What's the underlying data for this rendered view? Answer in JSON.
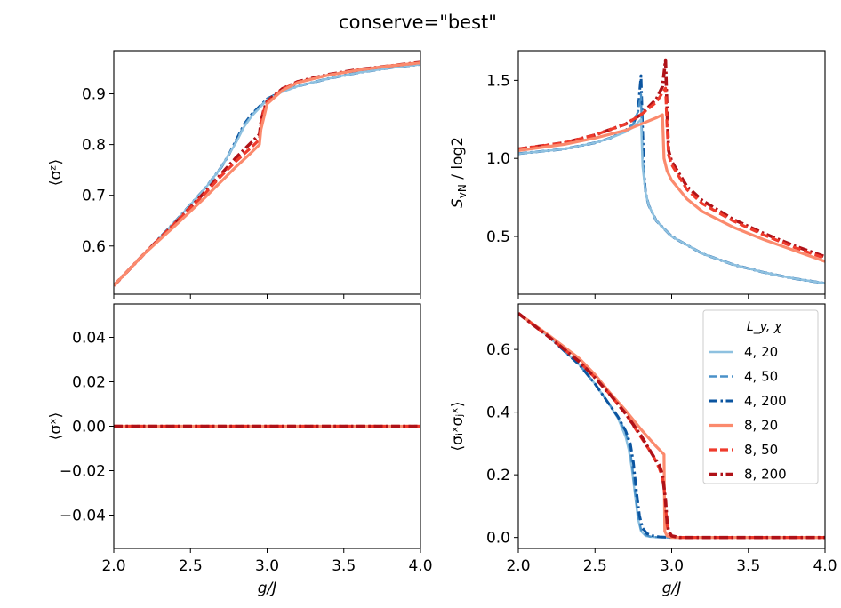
{
  "chart_data": {
    "title": "conserve=\"best\"",
    "colors": {
      "4, 20": "#8ec1e0",
      "4, 50": "#4a91c8",
      "4, 200": "#0b55a0",
      "8, 20": "#fb8a6d",
      "8, 50": "#ef3b2c",
      "8, 200": "#b01218"
    },
    "legend": {
      "title": "L_y, χ",
      "position": "upper right of bottom-right panel",
      "entries": [
        {
          "label": "4,  20",
          "key": "4, 20",
          "style": "solid"
        },
        {
          "label": "4,  50",
          "key": "4, 50",
          "style": "dashed"
        },
        {
          "label": "4,  200",
          "key": "4, 200",
          "style": "dashdot"
        },
        {
          "label": "8,  20",
          "key": "8, 20",
          "style": "solid"
        },
        {
          "label": "8,  50",
          "key": "8, 50",
          "style": "dashed"
        },
        {
          "label": "8,  200",
          "key": "8, 200",
          "style": "dashdot"
        }
      ]
    },
    "panels": [
      {
        "id": "sz",
        "type": "line",
        "ylabel": "⟨σᶻ⟩",
        "xlim": [
          2.0,
          4.0
        ],
        "ylim": [
          0.505,
          0.985
        ],
        "xticks": [],
        "yticks": [
          0.6,
          0.7,
          0.8,
          0.9
        ],
        "ytick_labels": [
          "0.6",
          "0.7",
          "0.8",
          "0.9"
        ],
        "series": [
          {
            "key": "4, 200",
            "style": "dashdot",
            "x": [
              2.0,
              2.2,
              2.4,
              2.6,
              2.7,
              2.75,
              2.8,
              2.85,
              2.9,
              3.0,
              3.1,
              3.2,
              3.4,
              3.6,
              3.8,
              4.0
            ],
            "y": [
              0.522,
              0.585,
              0.648,
              0.715,
              0.755,
              0.78,
              0.81,
              0.84,
              0.86,
              0.89,
              0.905,
              0.915,
              0.93,
              0.942,
              0.951,
              0.958
            ]
          },
          {
            "key": "4, 50",
            "style": "dashed",
            "x": [
              2.0,
              2.2,
              2.4,
              2.6,
              2.7,
              2.75,
              2.8,
              2.85,
              2.9,
              3.0,
              3.1,
              3.2,
              3.4,
              3.6,
              3.8,
              4.0
            ],
            "y": [
              0.522,
              0.585,
              0.648,
              0.715,
              0.755,
              0.78,
              0.808,
              0.838,
              0.858,
              0.889,
              0.905,
              0.915,
              0.93,
              0.942,
              0.951,
              0.958
            ]
          },
          {
            "key": "4, 20",
            "style": "solid",
            "x": [
              2.0,
              2.2,
              2.4,
              2.6,
              2.7,
              2.75,
              2.8,
              2.85,
              2.9,
              3.0,
              3.1,
              3.2,
              3.4,
              3.6,
              3.8,
              4.0
            ],
            "y": [
              0.522,
              0.585,
              0.648,
              0.715,
              0.755,
              0.78,
              0.805,
              0.835,
              0.856,
              0.888,
              0.904,
              0.915,
              0.93,
              0.942,
              0.951,
              0.958
            ]
          },
          {
            "key": "8, 200",
            "style": "dashdot",
            "x": [
              2.0,
              2.2,
              2.4,
              2.6,
              2.7,
              2.8,
              2.9,
              2.95,
              2.96,
              2.98,
              3.0,
              3.1,
              3.2,
              3.4,
              3.6,
              3.8,
              4.0
            ],
            "y": [
              0.522,
              0.585,
              0.645,
              0.708,
              0.742,
              0.775,
              0.805,
              0.82,
              0.845,
              0.87,
              0.885,
              0.91,
              0.924,
              0.938,
              0.948,
              0.955,
              0.962
            ]
          },
          {
            "key": "8, 50",
            "style": "dashed",
            "x": [
              2.0,
              2.2,
              2.4,
              2.6,
              2.7,
              2.8,
              2.9,
              2.95,
              2.96,
              2.98,
              3.0,
              3.1,
              3.2,
              3.4,
              3.6,
              3.8,
              4.0
            ],
            "y": [
              0.522,
              0.585,
              0.645,
              0.705,
              0.738,
              0.768,
              0.795,
              0.81,
              0.84,
              0.868,
              0.883,
              0.909,
              0.923,
              0.937,
              0.947,
              0.955,
              0.961
            ]
          },
          {
            "key": "8, 20",
            "style": "solid",
            "x": [
              2.0,
              2.2,
              2.4,
              2.6,
              2.7,
              2.8,
              2.9,
              2.95,
              2.96,
              3.0,
              3.1,
              3.2,
              3.4,
              3.6,
              3.8,
              4.0
            ],
            "y": [
              0.522,
              0.585,
              0.64,
              0.697,
              0.727,
              0.757,
              0.785,
              0.8,
              0.83,
              0.88,
              0.907,
              0.922,
              0.937,
              0.947,
              0.955,
              0.961
            ]
          }
        ]
      },
      {
        "id": "svn",
        "type": "line",
        "ylabel_main": "S",
        "ylabel_sub": "vN",
        "ylabel_rest": " / log2",
        "xlim": [
          2.0,
          4.0
        ],
        "ylim": [
          0.13,
          1.69
        ],
        "xticks": [],
        "yticks": [
          0.5,
          1.0,
          1.5
        ],
        "ytick_labels": [
          "0.5",
          "1.0",
          "1.5"
        ],
        "series": [
          {
            "key": "4, 200",
            "style": "dashdot",
            "x": [
              2.0,
              2.3,
              2.5,
              2.6,
              2.7,
              2.75,
              2.78,
              2.8,
              2.81,
              2.82,
              2.83,
              2.85,
              2.9,
              3.0,
              3.2,
              3.4,
              3.6,
              3.8,
              4.0
            ],
            "y": [
              1.03,
              1.06,
              1.1,
              1.13,
              1.18,
              1.22,
              1.3,
              1.53,
              1.2,
              0.9,
              0.78,
              0.7,
              0.6,
              0.5,
              0.39,
              0.32,
              0.27,
              0.23,
              0.2
            ]
          },
          {
            "key": "4, 50",
            "style": "dashed",
            "x": [
              2.0,
              2.3,
              2.5,
              2.6,
              2.7,
              2.75,
              2.78,
              2.8,
              2.81,
              2.83,
              2.85,
              2.9,
              3.0,
              3.2,
              3.4,
              3.6,
              3.8,
              4.0
            ],
            "y": [
              1.03,
              1.06,
              1.1,
              1.13,
              1.18,
              1.22,
              1.3,
              1.41,
              1.0,
              0.78,
              0.7,
              0.6,
              0.5,
              0.39,
              0.32,
              0.27,
              0.23,
              0.2
            ]
          },
          {
            "key": "4, 20",
            "style": "solid",
            "x": [
              2.0,
              2.3,
              2.5,
              2.6,
              2.7,
              2.75,
              2.8,
              2.81,
              2.83,
              2.85,
              2.9,
              3.0,
              3.2,
              3.4,
              3.6,
              3.8,
              4.0
            ],
            "y": [
              1.03,
              1.06,
              1.1,
              1.13,
              1.17,
              1.2,
              1.25,
              0.95,
              0.78,
              0.7,
              0.6,
              0.5,
              0.39,
              0.32,
              0.27,
              0.23,
              0.2
            ]
          },
          {
            "key": "8, 200",
            "style": "dashdot",
            "x": [
              2.0,
              2.3,
              2.5,
              2.7,
              2.8,
              2.9,
              2.94,
              2.96,
              2.97,
              2.98,
              3.0,
              3.1,
              3.2,
              3.4,
              3.6,
              3.8,
              4.0
            ],
            "y": [
              1.06,
              1.1,
              1.15,
              1.22,
              1.28,
              1.38,
              1.46,
              1.63,
              1.3,
              1.05,
              0.98,
              0.82,
              0.73,
              0.61,
              0.52,
              0.44,
              0.37
            ]
          },
          {
            "key": "8, 50",
            "style": "dashed",
            "x": [
              2.0,
              2.3,
              2.5,
              2.7,
              2.8,
              2.9,
              2.94,
              2.96,
              2.97,
              2.98,
              3.0,
              3.1,
              3.2,
              3.4,
              3.6,
              3.8,
              4.0
            ],
            "y": [
              1.06,
              1.1,
              1.15,
              1.22,
              1.28,
              1.36,
              1.42,
              1.45,
              1.2,
              1.02,
              0.96,
              0.8,
              0.71,
              0.6,
              0.51,
              0.43,
              0.36
            ]
          },
          {
            "key": "8, 20",
            "style": "solid",
            "x": [
              2.0,
              2.3,
              2.5,
              2.7,
              2.8,
              2.9,
              2.94,
              2.95,
              2.97,
              3.0,
              3.1,
              3.2,
              3.4,
              3.6,
              3.8,
              4.0
            ],
            "y": [
              1.05,
              1.09,
              1.13,
              1.18,
              1.22,
              1.26,
              1.28,
              1.0,
              0.92,
              0.86,
              0.74,
              0.66,
              0.56,
              0.48,
              0.41,
              0.34
            ]
          }
        ]
      },
      {
        "id": "sx",
        "type": "line",
        "ylabel": "⟨σˣ⟩",
        "xlabel": "g/J",
        "xlim": [
          2.0,
          4.0
        ],
        "ylim": [
          -0.055,
          0.055
        ],
        "xticks": [
          2.0,
          2.5,
          3.0,
          3.5,
          4.0
        ],
        "xtick_labels": [
          "2.0",
          "2.5",
          "3.0",
          "3.5",
          "4.0"
        ],
        "yticks": [
          -0.04,
          -0.02,
          0.0,
          0.02,
          0.04
        ],
        "ytick_labels": [
          "−0.04",
          "−0.02",
          "0.00",
          "0.02",
          "0.04"
        ],
        "series": [
          {
            "key": "4, 20",
            "style": "solid",
            "x": [
              2.0,
              4.0
            ],
            "y": [
              0.0,
              0.0
            ]
          },
          {
            "key": "4, 50",
            "style": "dashed",
            "x": [
              2.0,
              4.0
            ],
            "y": [
              0.0,
              0.0
            ]
          },
          {
            "key": "4, 200",
            "style": "dashdot",
            "x": [
              2.0,
              4.0
            ],
            "y": [
              0.0,
              0.0
            ]
          },
          {
            "key": "8, 20",
            "style": "solid",
            "x": [
              2.0,
              4.0
            ],
            "y": [
              0.0,
              0.0
            ]
          },
          {
            "key": "8, 50",
            "style": "dashed",
            "x": [
              2.0,
              4.0
            ],
            "y": [
              0.0,
              0.0
            ]
          },
          {
            "key": "8, 200",
            "style": "dashdot",
            "x": [
              2.0,
              4.0
            ],
            "y": [
              0.0,
              0.0
            ]
          }
        ]
      },
      {
        "id": "sxsx",
        "type": "line",
        "ylabel": "⟨σᵢˣσⱼˣ⟩",
        "xlabel": "g/J",
        "xlim": [
          2.0,
          4.0
        ],
        "ylim": [
          -0.035,
          0.745
        ],
        "xticks": [
          2.0,
          2.5,
          3.0,
          3.5,
          4.0
        ],
        "xtick_labels": [
          "2.0",
          "2.5",
          "3.0",
          "3.5",
          "4.0"
        ],
        "yticks": [
          0.0,
          0.2,
          0.4,
          0.6
        ],
        "ytick_labels": [
          "0.0",
          "0.2",
          "0.4",
          "0.6"
        ],
        "series": [
          {
            "key": "4, 20",
            "style": "solid",
            "x": [
              2.0,
              2.2,
              2.4,
              2.5,
              2.6,
              2.65,
              2.7,
              2.72,
              2.74,
              2.76,
              2.78,
              2.8,
              2.83,
              2.86,
              2.9,
              3.0,
              3.5,
              4.0
            ],
            "y": [
              0.715,
              0.64,
              0.55,
              0.49,
              0.42,
              0.38,
              0.32,
              0.28,
              0.22,
              0.14,
              0.06,
              0.02,
              0.005,
              0.002,
              0.001,
              0.0,
              0.0,
              0.0
            ]
          },
          {
            "key": "4, 50",
            "style": "dashed",
            "x": [
              2.0,
              2.2,
              2.4,
              2.5,
              2.6,
              2.65,
              2.7,
              2.72,
              2.74,
              2.76,
              2.78,
              2.8,
              2.83,
              2.86,
              2.9,
              3.0,
              3.5,
              4.0
            ],
            "y": [
              0.715,
              0.64,
              0.55,
              0.49,
              0.42,
              0.385,
              0.335,
              0.3,
              0.24,
              0.15,
              0.07,
              0.025,
              0.008,
              0.003,
              0.001,
              0.0,
              0.0,
              0.0
            ]
          },
          {
            "key": "4, 200",
            "style": "dashdot",
            "x": [
              2.0,
              2.2,
              2.4,
              2.5,
              2.6,
              2.65,
              2.7,
              2.73,
              2.75,
              2.77,
              2.79,
              2.81,
              2.84,
              2.88,
              2.92,
              3.0,
              3.5,
              4.0
            ],
            "y": [
              0.715,
              0.64,
              0.55,
              0.49,
              0.42,
              0.385,
              0.34,
              0.3,
              0.24,
              0.15,
              0.07,
              0.03,
              0.012,
              0.005,
              0.002,
              0.0,
              0.0,
              0.0
            ]
          },
          {
            "key": "8, 20",
            "style": "solid",
            "x": [
              2.0,
              2.2,
              2.4,
              2.5,
              2.6,
              2.7,
              2.8,
              2.9,
              2.95,
              2.955,
              2.97,
              3.0,
              3.5,
              4.0
            ],
            "y": [
              0.715,
              0.645,
              0.57,
              0.52,
              0.46,
              0.405,
              0.345,
              0.29,
              0.265,
              0.02,
              0.005,
              0.0,
              0.0,
              0.0
            ]
          },
          {
            "key": "8, 50",
            "style": "dashed",
            "x": [
              2.0,
              2.2,
              2.4,
              2.5,
              2.6,
              2.7,
              2.8,
              2.88,
              2.92,
              2.94,
              2.95,
              2.96,
              2.97,
              2.98,
              3.0,
              3.05,
              3.5,
              4.0
            ],
            "y": [
              0.715,
              0.64,
              0.56,
              0.51,
              0.455,
              0.395,
              0.32,
              0.26,
              0.22,
              0.19,
              0.16,
              0.1,
              0.04,
              0.015,
              0.005,
              0.0,
              0.0,
              0.0
            ]
          },
          {
            "key": "8, 200",
            "style": "dashdot",
            "x": [
              2.0,
              2.2,
              2.4,
              2.5,
              2.6,
              2.7,
              2.8,
              2.88,
              2.92,
              2.94,
              2.96,
              2.97,
              2.98,
              3.0,
              3.05,
              3.5,
              4.0
            ],
            "y": [
              0.715,
              0.64,
              0.56,
              0.51,
              0.455,
              0.395,
              0.325,
              0.26,
              0.23,
              0.2,
              0.12,
              0.05,
              0.02,
              0.005,
              0.0,
              0.0,
              0.0
            ]
          }
        ]
      }
    ]
  }
}
